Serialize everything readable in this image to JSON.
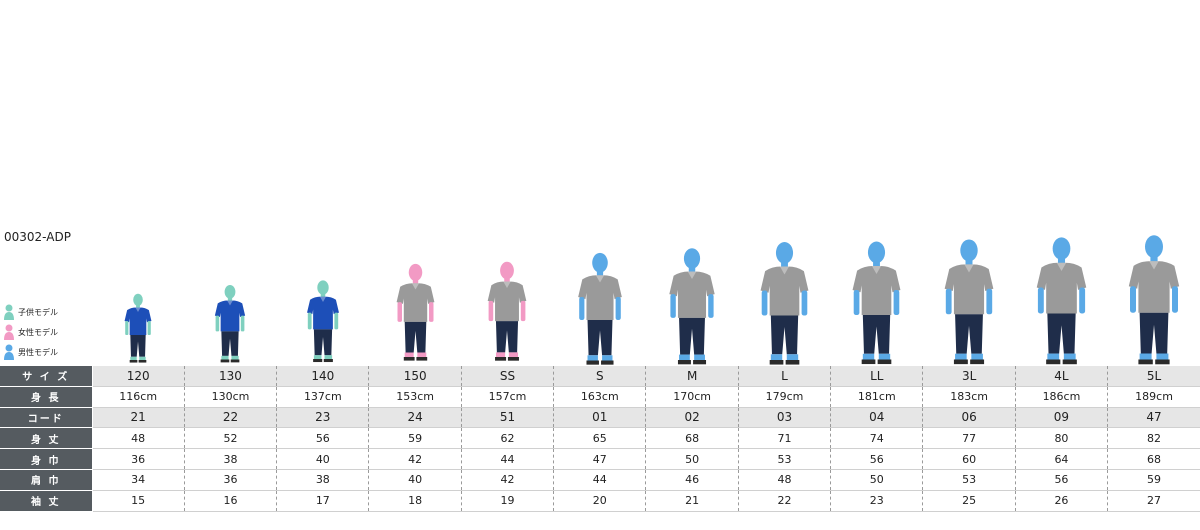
{
  "product_code": "00302-ADP",
  "legend": [
    {
      "label": "子供モデル",
      "color": "#7fd0bf",
      "icon": "kid-model-icon"
    },
    {
      "label": "女性モデル",
      "color": "#f29ac4",
      "icon": "female-model-icon"
    },
    {
      "label": "男性モデル",
      "color": "#5aa9e6",
      "icon": "male-model-icon"
    }
  ],
  "colors": {
    "kid_skin": "#7fd0bf",
    "female_skin": "#f29ac4",
    "male_skin": "#5aa9e6",
    "kid_shirt": "#1d4fb8",
    "adult_shirt": "#9a9a9a",
    "pants": "#1f2d4a",
    "rowhead_bg": "#555b60",
    "shade_bg": "#e6e6e6"
  },
  "figures": [
    {
      "size": "120",
      "model": "kid",
      "height_cm": 116
    },
    {
      "size": "130",
      "model": "kid",
      "height_cm": 130
    },
    {
      "size": "140",
      "model": "kid",
      "height_cm": 137
    },
    {
      "size": "150",
      "model": "female",
      "height_cm": 153
    },
    {
      "size": "SS",
      "model": "female",
      "height_cm": 157
    },
    {
      "size": "S",
      "model": "male",
      "height_cm": 163
    },
    {
      "size": "M",
      "model": "male",
      "height_cm": 170
    },
    {
      "size": "L",
      "model": "male",
      "height_cm": 179
    },
    {
      "size": "LL",
      "model": "male",
      "height_cm": 181
    },
    {
      "size": "3L",
      "model": "male",
      "height_cm": 183
    },
    {
      "size": "4L",
      "model": "male",
      "height_cm": 186
    },
    {
      "size": "5L",
      "model": "male",
      "height_cm": 189
    }
  ],
  "table": {
    "rows": [
      {
        "label": "サ イ ズ",
        "shade": true,
        "colored": true,
        "values": [
          "120",
          "130",
          "140",
          "150",
          "SS",
          "S",
          "M",
          "L",
          "LL",
          "3L",
          "4L",
          "5L"
        ]
      },
      {
        "label": "身 長",
        "shade": false,
        "colored": false,
        "values": [
          "116cm",
          "130cm",
          "137cm",
          "153cm",
          "157cm",
          "163cm",
          "170cm",
          "179cm",
          "181cm",
          "183cm",
          "186cm",
          "189cm"
        ]
      },
      {
        "label": "コード",
        "shade": true,
        "colored": true,
        "values": [
          "21",
          "22",
          "23",
          "24",
          "51",
          "01",
          "02",
          "03",
          "04",
          "06",
          "09",
          "47"
        ]
      },
      {
        "label": "身 丈",
        "shade": false,
        "colored": false,
        "values": [
          "48",
          "52",
          "56",
          "59",
          "62",
          "65",
          "68",
          "71",
          "74",
          "77",
          "80",
          "82"
        ]
      },
      {
        "label": "身 巾",
        "shade": false,
        "colored": false,
        "values": [
          "36",
          "38",
          "40",
          "42",
          "44",
          "47",
          "50",
          "53",
          "56",
          "60",
          "64",
          "68"
        ]
      },
      {
        "label": "肩 巾",
        "shade": false,
        "colored": false,
        "values": [
          "34",
          "36",
          "38",
          "40",
          "42",
          "44",
          "46",
          "48",
          "50",
          "53",
          "56",
          "59"
        ]
      },
      {
        "label": "袖 丈",
        "shade": false,
        "colored": false,
        "values": [
          "15",
          "16",
          "17",
          "18",
          "19",
          "20",
          "21",
          "22",
          "23",
          "25",
          "26",
          "27"
        ]
      }
    ]
  }
}
